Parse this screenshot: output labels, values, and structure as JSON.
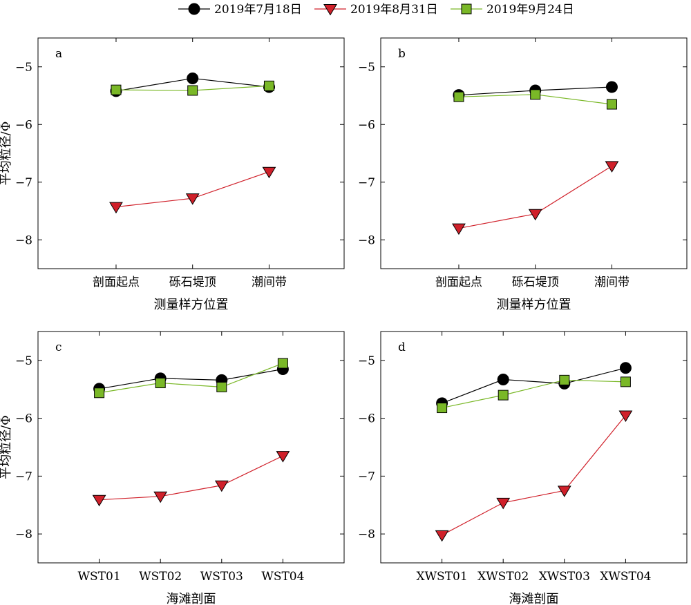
{
  "legend": {
    "placement": "top-center",
    "entries": [
      {
        "label": "2019年7月18日",
        "marker": "circle",
        "color": "#000000",
        "fill": "#000000"
      },
      {
        "label": "2019年8月31日",
        "marker": "triangle-down",
        "color": "#d0202a",
        "fill": "#d0202a"
      },
      {
        "label": "2019年9月24日",
        "marker": "square",
        "color": "#7ab827",
        "fill": "#7ab827"
      }
    ]
  },
  "chart_data": [
    {
      "type": "line",
      "panel_label": "a",
      "categories": [
        "剖面起点",
        "砾石堤顶",
        "潮间带"
      ],
      "xlabel": "测量样方位置",
      "ylabel": "平均粒径/Φ",
      "ylim": [
        -8.5,
        -4.5
      ],
      "yticks": [
        -5,
        -6,
        -7,
        -8
      ],
      "series": [
        {
          "name": "2019年7月18日",
          "values": [
            -5.42,
            -5.2,
            -5.35
          ]
        },
        {
          "name": "2019年8月31日",
          "values": [
            -7.43,
            -7.28,
            -6.82
          ]
        },
        {
          "name": "2019年9月24日",
          "values": [
            -5.4,
            -5.41,
            -5.33
          ]
        }
      ]
    },
    {
      "type": "line",
      "panel_label": "b",
      "categories": [
        "剖面起点",
        "砾石堤顶",
        "潮间带"
      ],
      "xlabel": "测量样方位置",
      "ylabel": "",
      "ylim": [
        -8.5,
        -4.5
      ],
      "yticks": [
        -5,
        -6,
        -7,
        -8
      ],
      "series": [
        {
          "name": "2019年7月18日",
          "values": [
            -5.49,
            -5.41,
            -5.35
          ]
        },
        {
          "name": "2019年8月31日",
          "values": [
            -7.8,
            -7.55,
            -6.72
          ]
        },
        {
          "name": "2019年9月24日",
          "values": [
            -5.52,
            -5.48,
            -5.65
          ]
        }
      ]
    },
    {
      "type": "line",
      "panel_label": "c",
      "categories": [
        "WST01",
        "WST02",
        "WST03",
        "WST04"
      ],
      "xlabel": "海滩剖面",
      "ylabel": "平均粒径/Φ",
      "ylim": [
        -8.5,
        -4.5
      ],
      "yticks": [
        -5,
        -6,
        -7,
        -8
      ],
      "series": [
        {
          "name": "2019年7月18日",
          "values": [
            -5.49,
            -5.31,
            -5.34,
            -5.15
          ]
        },
        {
          "name": "2019年8月31日",
          "values": [
            -7.41,
            -7.35,
            -7.16,
            -6.65
          ]
        },
        {
          "name": "2019年9月24日",
          "values": [
            -5.56,
            -5.39,
            -5.46,
            -5.05
          ]
        }
      ]
    },
    {
      "type": "line",
      "panel_label": "d",
      "categories": [
        "XWST01",
        "XWST02",
        "XWST03",
        "XWST04"
      ],
      "xlabel": "海滩剖面",
      "ylabel": "",
      "ylim": [
        -8.5,
        -4.5
      ],
      "yticks": [
        -5,
        -6,
        -7,
        -8
      ],
      "series": [
        {
          "name": "2019年7月18日",
          "values": [
            -5.74,
            -5.33,
            -5.4,
            -5.13
          ]
        },
        {
          "name": "2019年8月31日",
          "values": [
            -8.02,
            -7.46,
            -7.25,
            -5.95
          ]
        },
        {
          "name": "2019年9月24日",
          "values": [
            -5.82,
            -5.6,
            -5.34,
            -5.37
          ]
        }
      ]
    }
  ]
}
